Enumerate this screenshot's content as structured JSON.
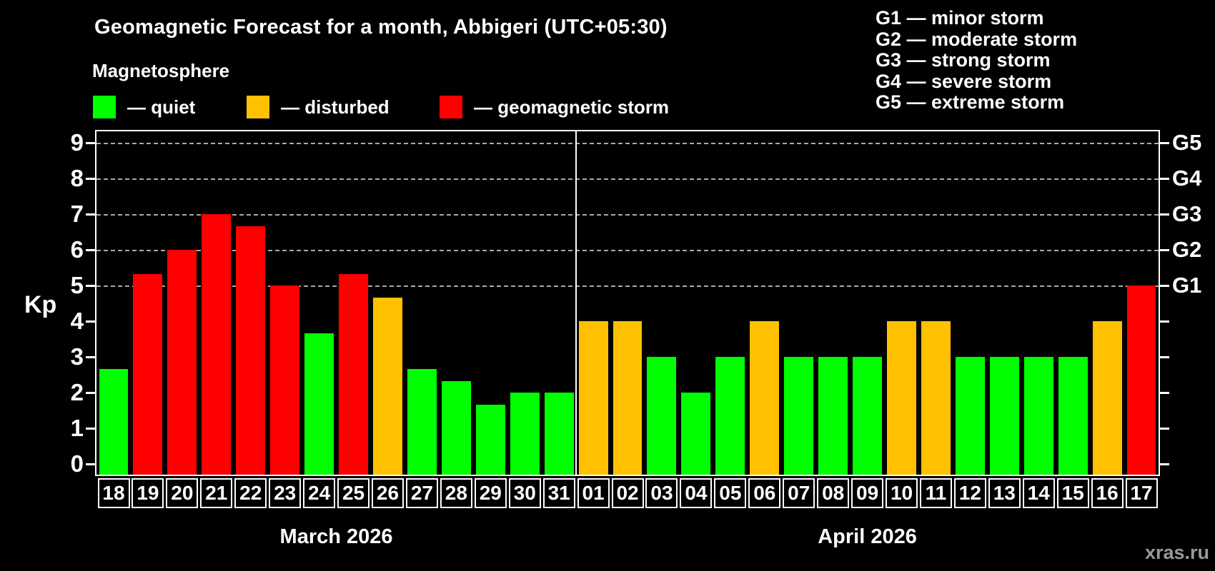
{
  "header": {
    "title": "Geomagnetic Forecast for a month, Abbigeri (UTC+05:30)",
    "subtitle": "Magnetosphere",
    "legend": [
      {
        "state": "quiet",
        "label": "— quiet",
        "color": "#00ff00"
      },
      {
        "state": "disturbed",
        "label": "— disturbed",
        "color": "#ffc000"
      },
      {
        "state": "storm",
        "label": "— geomagnetic storm",
        "color": "#ff0000"
      }
    ],
    "storm_scale": [
      "G1 — minor storm",
      "G2 — moderate storm",
      "G3 — strong storm",
      "G4 — severe storm",
      "G5 — extreme storm"
    ]
  },
  "axes": {
    "y_label": "Kp",
    "y_ticks": [
      0,
      1,
      2,
      3,
      4,
      5,
      6,
      7,
      8,
      9
    ],
    "right_axis_labels": [
      {
        "kp": 5,
        "label": "G1"
      },
      {
        "kp": 6,
        "label": "G2"
      },
      {
        "kp": 7,
        "label": "G3"
      },
      {
        "kp": 8,
        "label": "G4"
      },
      {
        "kp": 9,
        "label": "G5"
      }
    ],
    "gridlines_at_kp": [
      5,
      6,
      7,
      8,
      9
    ]
  },
  "chart_data": {
    "type": "bar",
    "title": "Geomagnetic Forecast for a month, Abbigeri (UTC+05:30)",
    "xlabel": "",
    "ylabel": "Kp",
    "ylim": [
      0,
      9.4
    ],
    "grid": "dashed horizontal lines at Kp 5,6,7,8,9 (G1–G5 levels)",
    "legend_position": "top-left",
    "categories": [
      "18",
      "19",
      "20",
      "21",
      "22",
      "23",
      "24",
      "25",
      "26",
      "27",
      "28",
      "29",
      "30",
      "31",
      "01",
      "02",
      "03",
      "04",
      "05",
      "06",
      "07",
      "08",
      "09",
      "10",
      "11",
      "12",
      "13",
      "14",
      "15",
      "16",
      "17"
    ],
    "values": [
      2.67,
      5.33,
      6,
      7,
      6.67,
      5,
      3.67,
      5.33,
      4.67,
      2.67,
      2.33,
      1.67,
      2,
      2,
      4,
      4,
      3,
      2,
      3,
      4,
      3,
      3,
      3,
      4,
      4,
      3,
      3,
      3,
      3,
      4,
      5
    ],
    "states": [
      "quiet",
      "storm",
      "storm",
      "storm",
      "storm",
      "storm",
      "quiet",
      "storm",
      "disturbed",
      "quiet",
      "quiet",
      "quiet",
      "quiet",
      "quiet",
      "disturbed",
      "disturbed",
      "quiet",
      "quiet",
      "quiet",
      "disturbed",
      "quiet",
      "quiet",
      "quiet",
      "disturbed",
      "disturbed",
      "quiet",
      "quiet",
      "quiet",
      "quiet",
      "disturbed",
      "storm"
    ],
    "state_colors": {
      "quiet": "#00ff00",
      "disturbed": "#ffc000",
      "storm": "#ff0000"
    },
    "months": [
      {
        "label": "March 2026",
        "start_index": 0,
        "day_count": 14
      },
      {
        "label": "April 2026",
        "start_index": 14,
        "day_count": 17
      }
    ],
    "separator_after_index": 13
  },
  "watermark": "xras.ru"
}
